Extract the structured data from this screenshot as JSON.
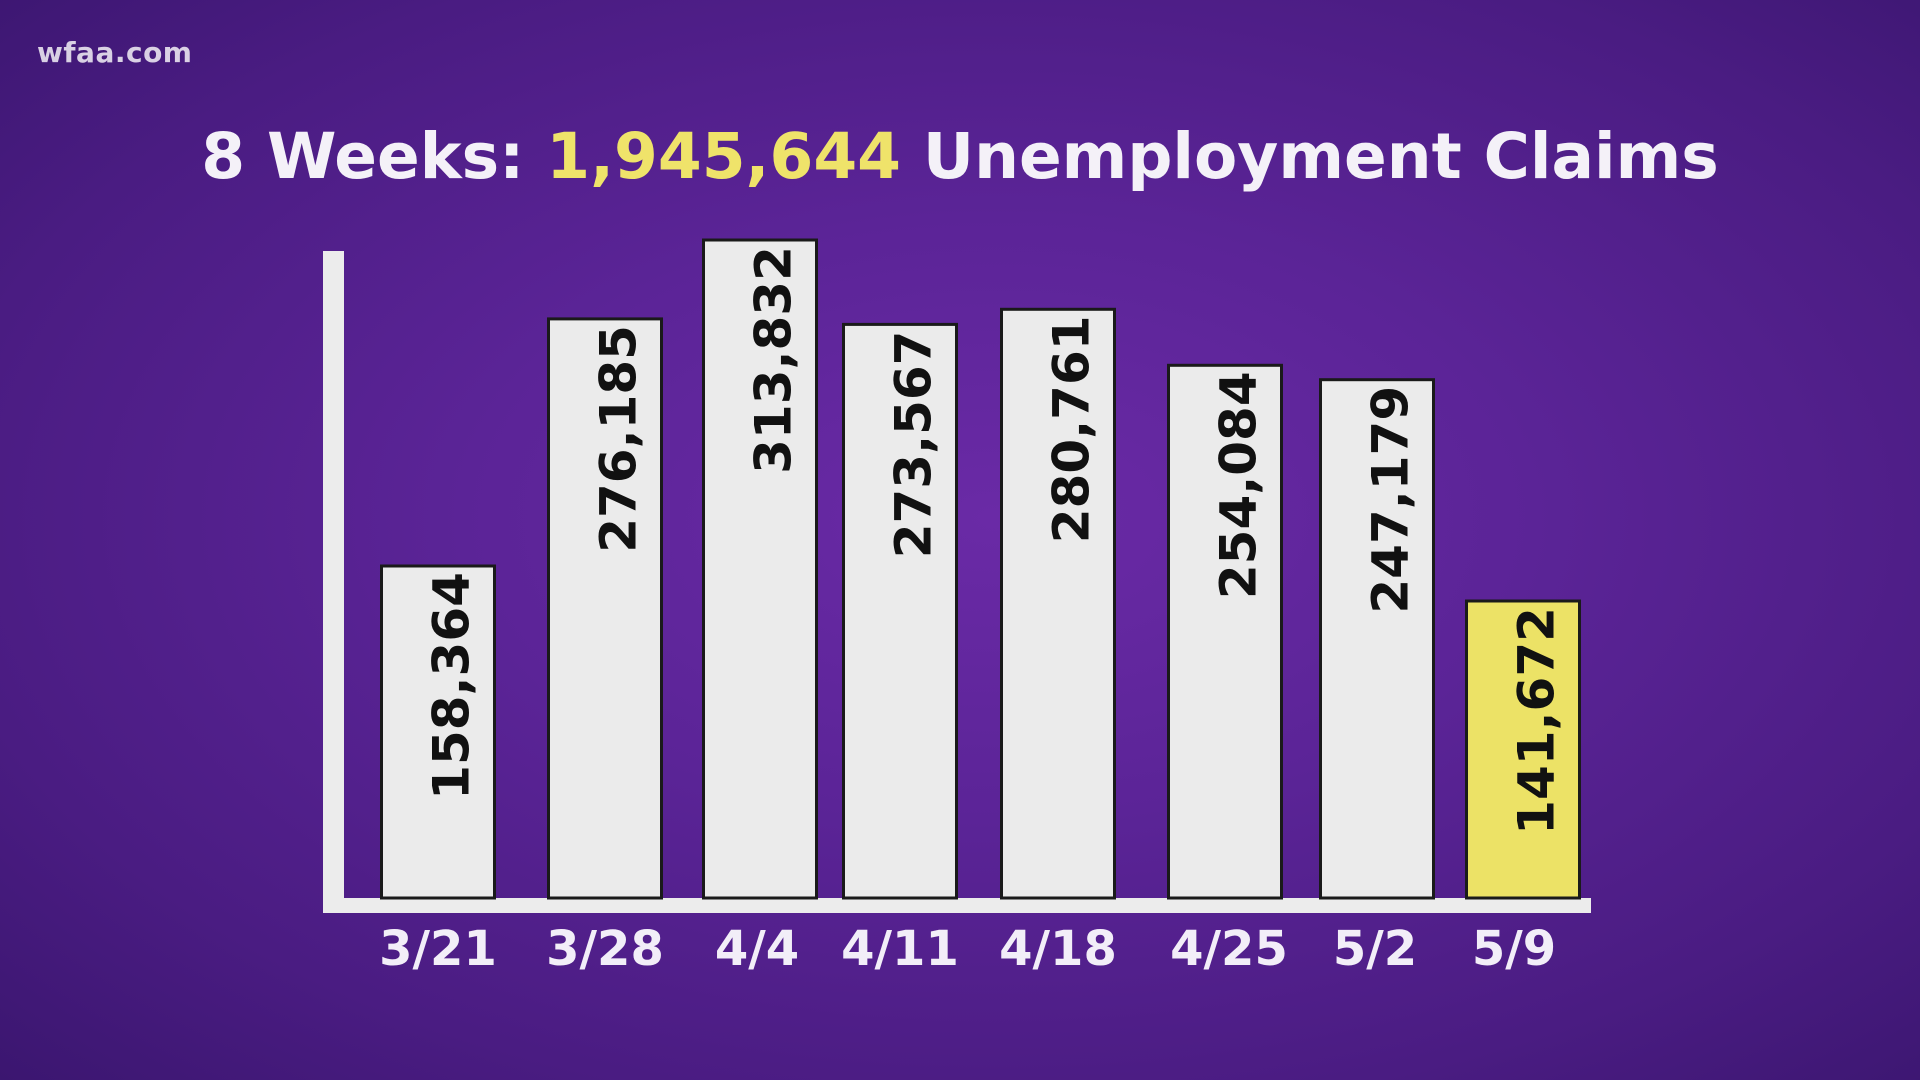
{
  "watermark": "wfaa.com",
  "colors": {
    "background": "#5b2497",
    "bar": "#ebebeb",
    "bar_highlight": "#ece266",
    "title_highlight": "#efe36a",
    "text": "#f4f1f8"
  },
  "title": {
    "prefix": "8 Weeks: ",
    "highlight": "1,945,644",
    "suffix": " Unemployment Claims"
  },
  "chart_data": {
    "type": "bar",
    "title": "8 Weeks: 1,945,644 Unemployment Claims",
    "categories": [
      "3/21",
      "3/28",
      "4/4",
      "4/11",
      "4/18",
      "4/25",
      "5/2",
      "5/9"
    ],
    "values": [
      158364,
      276185,
      313832,
      273567,
      280761,
      254084,
      247179,
      141672
    ],
    "value_labels": [
      "158,364",
      "276,185",
      "313,832",
      "273,567",
      "280,761",
      "254,084",
      "247,179",
      "141,672"
    ],
    "highlight_index": 7,
    "xlabel": "",
    "ylabel": "",
    "ylim": [
      0,
      313832
    ],
    "grid": false
  }
}
